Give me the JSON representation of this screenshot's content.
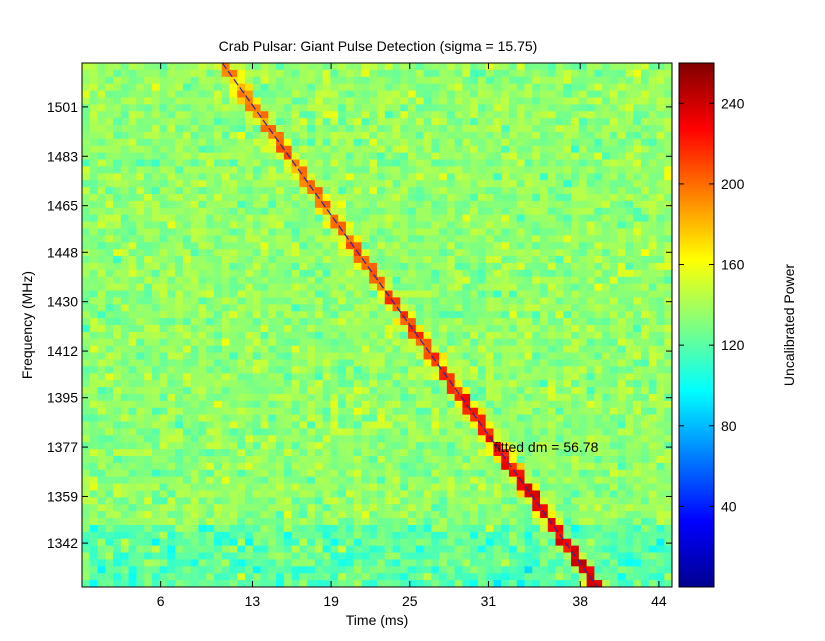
{
  "chart_data": {
    "type": "heatmap",
    "title": "Crab Pulsar: Giant Pulse Detection (sigma = 15.75)",
    "xlabel": "Time (ms)",
    "ylabel": "Frequency (MHz)",
    "colorbar_label": "Uncalibrated Power",
    "x_ticks": [
      6,
      13,
      19,
      25,
      31,
      38,
      44
    ],
    "x_tick_labels": [
      "6",
      "13",
      "19",
      "25",
      "31",
      "38",
      "44"
    ],
    "y_ticks": [
      1342,
      1359,
      1377,
      1395,
      1412,
      1430,
      1448,
      1465,
      1483,
      1501
    ],
    "y_tick_labels": [
      "1342",
      "1359",
      "1377",
      "1395",
      "1412",
      "1430",
      "1448",
      "1465",
      "1483",
      "1501"
    ],
    "colorbar_ticks": [
      40,
      80,
      120,
      160,
      200,
      240
    ],
    "colorbar_tick_labels": [
      "40",
      "80",
      "120",
      "160",
      "200",
      "240"
    ],
    "xlim": [
      0,
      45
    ],
    "ylim": [
      1326,
      1517
    ],
    "clim": [
      0,
      260
    ],
    "colormap": "jet",
    "background_power_mean": 135,
    "pulse_peak_power": 235,
    "fitted_dm_line": {
      "x": [
        10.7,
        39.3
      ],
      "y": [
        1517,
        1326
      ]
    },
    "annotation": {
      "text": "fitted dm = 56.78",
      "x": 31.4,
      "y": 1377
    },
    "grid": false
  }
}
